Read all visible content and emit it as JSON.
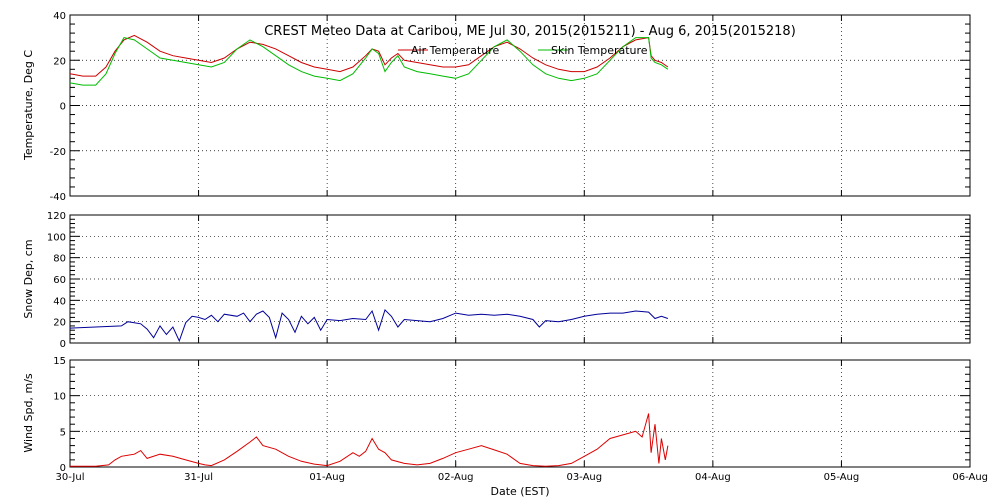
{
  "title": "CREST Meteo Data at Caribou, ME   Jul 30, 2015(2015211) - Aug  6, 2015(2015218)",
  "xlabel": "Date (EST)",
  "x_ticks": [
    "30-Jul",
    "31-Jul",
    "01-Aug",
    "02-Aug",
    "03-Aug",
    "04-Aug",
    "05-Aug",
    "06-Aug"
  ],
  "chart_data": [
    {
      "type": "line",
      "ylabel": "Temperature, Deg C",
      "ylim": [
        -40,
        40
      ],
      "y_ticks": [
        -40,
        -20,
        0,
        20,
        40
      ],
      "x_range_days": [
        0,
        7
      ],
      "grid": true,
      "legend_placement": "top-right",
      "series": [
        {
          "name": "Air Temperature",
          "color": "#cc0000",
          "points": [
            [
              0.0,
              14
            ],
            [
              0.1,
              13
            ],
            [
              0.2,
              13
            ],
            [
              0.28,
              17
            ],
            [
              0.35,
              24
            ],
            [
              0.42,
              29
            ],
            [
              0.5,
              31
            ],
            [
              0.6,
              28
            ],
            [
              0.7,
              24
            ],
            [
              0.8,
              22
            ],
            [
              0.9,
              21
            ],
            [
              1.0,
              20
            ],
            [
              1.1,
              19
            ],
            [
              1.2,
              21
            ],
            [
              1.3,
              25
            ],
            [
              1.4,
              28
            ],
            [
              1.5,
              27
            ],
            [
              1.6,
              25
            ],
            [
              1.7,
              22
            ],
            [
              1.8,
              19
            ],
            [
              1.9,
              17
            ],
            [
              2.0,
              16
            ],
            [
              2.1,
              15
            ],
            [
              2.2,
              17
            ],
            [
              2.3,
              22
            ],
            [
              2.35,
              25
            ],
            [
              2.4,
              24
            ],
            [
              2.45,
              18
            ],
            [
              2.5,
              21
            ],
            [
              2.55,
              23
            ],
            [
              2.6,
              20
            ],
            [
              2.7,
              19
            ],
            [
              2.8,
              18
            ],
            [
              2.9,
              17
            ],
            [
              3.0,
              17
            ],
            [
              3.1,
              18
            ],
            [
              3.2,
              22
            ],
            [
              3.3,
              26
            ],
            [
              3.4,
              28
            ],
            [
              3.5,
              25
            ],
            [
              3.6,
              21
            ],
            [
              3.7,
              18
            ],
            [
              3.8,
              16
            ],
            [
              3.9,
              15
            ],
            [
              4.0,
              15
            ],
            [
              4.1,
              17
            ],
            [
              4.2,
              21
            ],
            [
              4.3,
              26
            ],
            [
              4.4,
              29
            ],
            [
              4.5,
              30
            ],
            [
              4.52,
              22
            ],
            [
              4.55,
              20
            ],
            [
              4.6,
              19
            ],
            [
              4.65,
              17
            ]
          ]
        },
        {
          "name": "Skin Temperature",
          "color": "#00bb00",
          "points": [
            [
              0.0,
              10
            ],
            [
              0.1,
              9
            ],
            [
              0.2,
              9
            ],
            [
              0.28,
              14
            ],
            [
              0.35,
              23
            ],
            [
              0.42,
              30
            ],
            [
              0.5,
              29
            ],
            [
              0.6,
              25
            ],
            [
              0.7,
              21
            ],
            [
              0.8,
              20
            ],
            [
              0.9,
              19
            ],
            [
              1.0,
              18
            ],
            [
              1.1,
              17
            ],
            [
              1.2,
              19
            ],
            [
              1.3,
              25
            ],
            [
              1.4,
              29
            ],
            [
              1.5,
              26
            ],
            [
              1.6,
              22
            ],
            [
              1.7,
              18
            ],
            [
              1.8,
              15
            ],
            [
              1.9,
              13
            ],
            [
              2.0,
              12
            ],
            [
              2.1,
              11
            ],
            [
              2.2,
              14
            ],
            [
              2.3,
              21
            ],
            [
              2.35,
              25
            ],
            [
              2.4,
              23
            ],
            [
              2.45,
              15
            ],
            [
              2.5,
              19
            ],
            [
              2.55,
              22
            ],
            [
              2.6,
              17
            ],
            [
              2.7,
              15
            ],
            [
              2.8,
              14
            ],
            [
              2.9,
              13
            ],
            [
              3.0,
              12
            ],
            [
              3.1,
              14
            ],
            [
              3.2,
              20
            ],
            [
              3.3,
              26
            ],
            [
              3.4,
              29
            ],
            [
              3.5,
              24
            ],
            [
              3.6,
              18
            ],
            [
              3.7,
              14
            ],
            [
              3.8,
              12
            ],
            [
              3.9,
              11
            ],
            [
              4.0,
              12
            ],
            [
              4.1,
              14
            ],
            [
              4.2,
              20
            ],
            [
              4.3,
              26
            ],
            [
              4.4,
              30
            ],
            [
              4.5,
              30
            ],
            [
              4.52,
              21
            ],
            [
              4.55,
              19
            ],
            [
              4.6,
              18
            ],
            [
              4.65,
              16
            ]
          ]
        }
      ]
    },
    {
      "type": "line",
      "ylabel": "Snow Dep, cm",
      "ylim": [
        0,
        120
      ],
      "y_ticks": [
        0,
        20,
        40,
        60,
        80,
        100,
        120
      ],
      "x_range_days": [
        0,
        7
      ],
      "grid": true,
      "series": [
        {
          "color": "#000099",
          "points": [
            [
              0.0,
              14
            ],
            [
              0.2,
              15
            ],
            [
              0.4,
              16
            ],
            [
              0.45,
              20
            ],
            [
              0.55,
              18
            ],
            [
              0.6,
              13
            ],
            [
              0.65,
              5
            ],
            [
              0.7,
              16
            ],
            [
              0.75,
              8
            ],
            [
              0.8,
              15
            ],
            [
              0.85,
              2
            ],
            [
              0.9,
              19
            ],
            [
              0.95,
              25
            ],
            [
              1.0,
              24
            ],
            [
              1.05,
              22
            ],
            [
              1.1,
              26
            ],
            [
              1.15,
              20
            ],
            [
              1.2,
              27
            ],
            [
              1.3,
              25
            ],
            [
              1.35,
              28
            ],
            [
              1.4,
              20
            ],
            [
              1.45,
              27
            ],
            [
              1.5,
              30
            ],
            [
              1.55,
              24
            ],
            [
              1.6,
              5
            ],
            [
              1.65,
              28
            ],
            [
              1.7,
              22
            ],
            [
              1.75,
              10
            ],
            [
              1.8,
              25
            ],
            [
              1.85,
              18
            ],
            [
              1.9,
              24
            ],
            [
              1.95,
              12
            ],
            [
              2.0,
              22
            ],
            [
              2.1,
              21
            ],
            [
              2.2,
              23
            ],
            [
              2.3,
              22
            ],
            [
              2.35,
              30
            ],
            [
              2.4,
              12
            ],
            [
              2.45,
              31
            ],
            [
              2.5,
              25
            ],
            [
              2.55,
              15
            ],
            [
              2.6,
              22
            ],
            [
              2.7,
              21
            ],
            [
              2.8,
              20
            ],
            [
              2.9,
              23
            ],
            [
              3.0,
              28
            ],
            [
              3.1,
              26
            ],
            [
              3.2,
              27
            ],
            [
              3.3,
              26
            ],
            [
              3.4,
              27
            ],
            [
              3.5,
              25
            ],
            [
              3.6,
              22
            ],
            [
              3.65,
              15
            ],
            [
              3.7,
              21
            ],
            [
              3.8,
              20
            ],
            [
              3.9,
              22
            ],
            [
              4.0,
              25
            ],
            [
              4.1,
              27
            ],
            [
              4.2,
              28
            ],
            [
              4.3,
              28
            ],
            [
              4.4,
              30
            ],
            [
              4.5,
              29
            ],
            [
              4.55,
              23
            ],
            [
              4.6,
              25
            ],
            [
              4.65,
              23
            ]
          ]
        }
      ]
    },
    {
      "type": "line",
      "ylabel": "Wind Spd, m/s",
      "ylim": [
        0,
        15
      ],
      "y_ticks": [
        0,
        5,
        10,
        15
      ],
      "x_range_days": [
        0,
        7
      ],
      "grid": true,
      "series": [
        {
          "color": "#dd0000",
          "points": [
            [
              0.0,
              0.1
            ],
            [
              0.2,
              0.1
            ],
            [
              0.3,
              0.3
            ],
            [
              0.35,
              1.0
            ],
            [
              0.4,
              1.5
            ],
            [
              0.5,
              1.8
            ],
            [
              0.55,
              2.3
            ],
            [
              0.6,
              1.2
            ],
            [
              0.7,
              1.8
            ],
            [
              0.8,
              1.5
            ],
            [
              0.9,
              1.0
            ],
            [
              1.0,
              0.5
            ],
            [
              1.05,
              0.3
            ],
            [
              1.1,
              0.2
            ],
            [
              1.2,
              1.0
            ],
            [
              1.3,
              2.2
            ],
            [
              1.4,
              3.5
            ],
            [
              1.45,
              4.2
            ],
            [
              1.5,
              3.0
            ],
            [
              1.6,
              2.5
            ],
            [
              1.7,
              1.5
            ],
            [
              1.8,
              0.8
            ],
            [
              1.9,
              0.4
            ],
            [
              2.0,
              0.2
            ],
            [
              2.1,
              0.8
            ],
            [
              2.2,
              2.0
            ],
            [
              2.25,
              1.5
            ],
            [
              2.3,
              2.2
            ],
            [
              2.35,
              4.0
            ],
            [
              2.4,
              2.5
            ],
            [
              2.45,
              2.0
            ],
            [
              2.5,
              1.0
            ],
            [
              2.6,
              0.5
            ],
            [
              2.7,
              0.3
            ],
            [
              2.8,
              0.5
            ],
            [
              2.9,
              1.2
            ],
            [
              3.0,
              2.0
            ],
            [
              3.1,
              2.5
            ],
            [
              3.2,
              3.0
            ],
            [
              3.3,
              2.4
            ],
            [
              3.4,
              1.8
            ],
            [
              3.5,
              0.5
            ],
            [
              3.6,
              0.2
            ],
            [
              3.7,
              0.1
            ],
            [
              3.8,
              0.2
            ],
            [
              3.9,
              0.5
            ],
            [
              4.0,
              1.5
            ],
            [
              4.1,
              2.5
            ],
            [
              4.2,
              4.0
            ],
            [
              4.3,
              4.5
            ],
            [
              4.4,
              5.0
            ],
            [
              4.45,
              4.2
            ],
            [
              4.5,
              7.5
            ],
            [
              4.52,
              2.0
            ],
            [
              4.55,
              6.0
            ],
            [
              4.58,
              0.5
            ],
            [
              4.6,
              4.0
            ],
            [
              4.63,
              1.0
            ],
            [
              4.65,
              3.0
            ]
          ]
        }
      ]
    }
  ]
}
